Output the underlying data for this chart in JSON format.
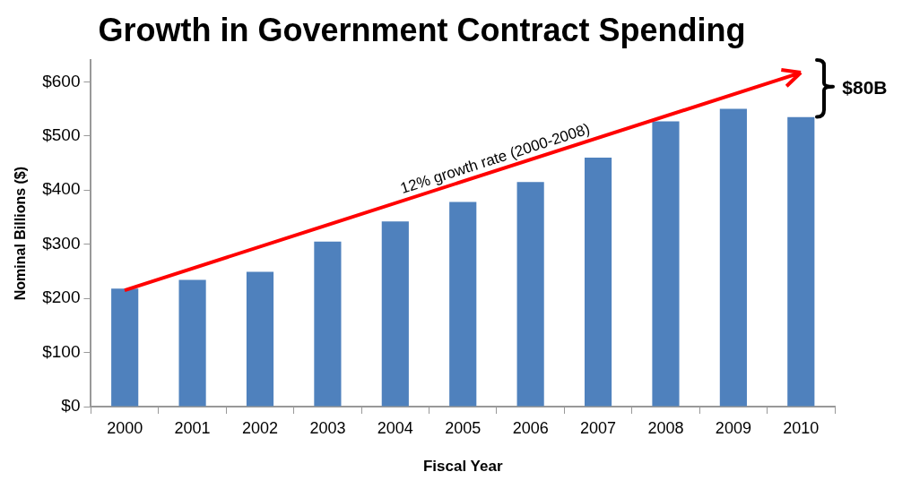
{
  "chart_data": {
    "type": "bar",
    "title": "Growth in Government Contract Spending",
    "xlabel": "Fiscal Year",
    "ylabel": "Nominal Billions ($)",
    "categories": [
      "2000",
      "2001",
      "2002",
      "2003",
      "2004",
      "2005",
      "2006",
      "2007",
      "2008",
      "2009",
      "2010"
    ],
    "series": [
      {
        "color": "#4f81bd",
        "values": [
          218,
          234,
          249,
          305,
          342,
          378,
          415,
          460,
          527,
          550,
          535
        ]
      }
    ],
    "ylim": [
      0,
      640
    ],
    "yticks": [
      {
        "value": 0,
        "label": "$0"
      },
      {
        "value": 100,
        "label": "$100"
      },
      {
        "value": 200,
        "label": "$200"
      },
      {
        "value": 300,
        "label": "$300"
      },
      {
        "value": 400,
        "label": "$400"
      },
      {
        "value": 500,
        "label": "$500"
      },
      {
        "value": 600,
        "label": "$600"
      }
    ],
    "annotations": [
      "12% growth rate (2000-2008)",
      "$80B"
    ],
    "grid": false,
    "legend": false
  }
}
